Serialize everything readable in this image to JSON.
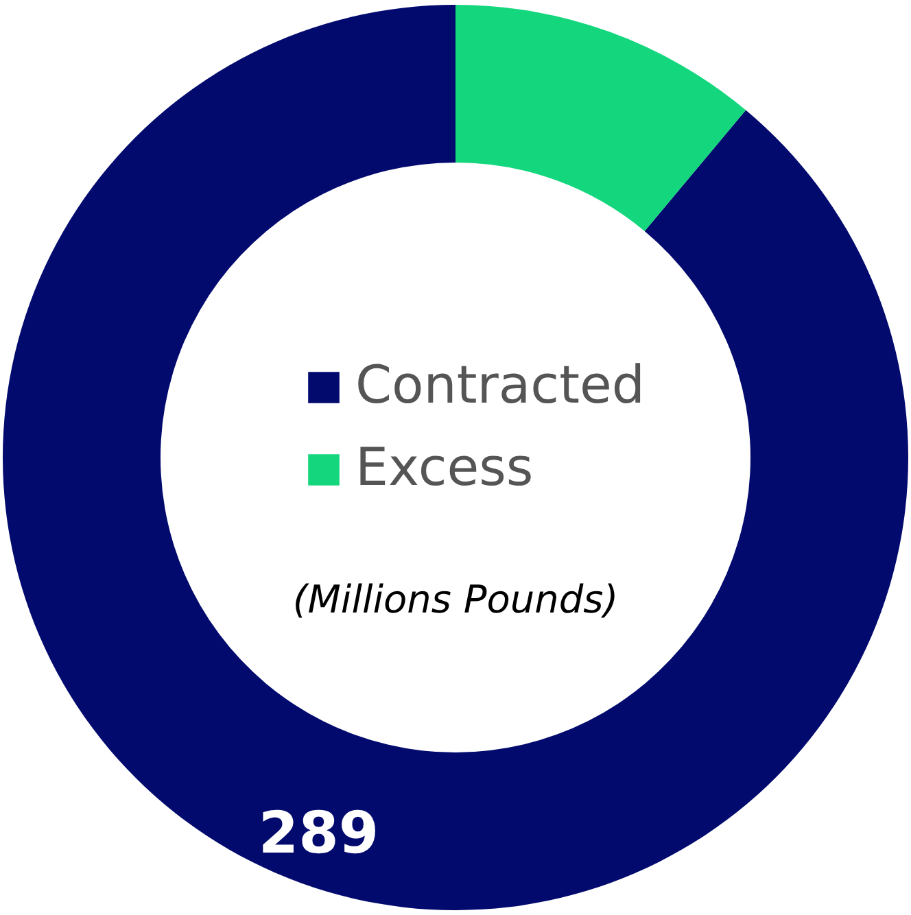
{
  "chart_data": {
    "type": "donut",
    "categories": [
      "Contracted",
      "Excess"
    ],
    "values": [
      289,
      36
    ],
    "colors": [
      "#020a6e",
      "#13d67d"
    ],
    "value_labels": [
      "289",
      null
    ],
    "legend": "center",
    "annotations": [
      "(Millions Pounds)"
    ]
  }
}
